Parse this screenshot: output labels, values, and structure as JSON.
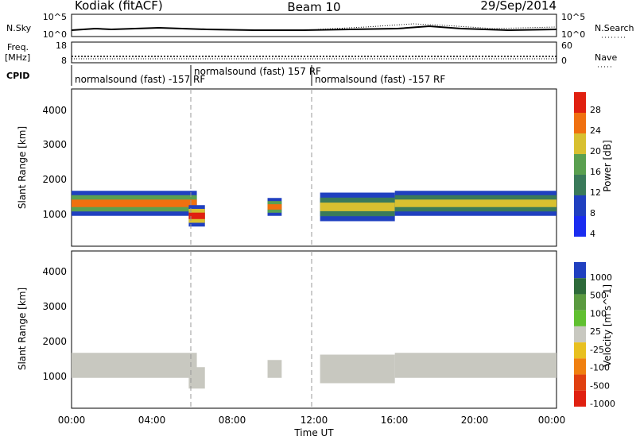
{
  "header": {
    "station": "Kodiak (fitACF)",
    "beam": "Beam 10",
    "date": "29/Sep/2014"
  },
  "noise_panel": {
    "left_label": "N.Sky",
    "right_label": "N.Search",
    "left_ticks": [
      "10^5",
      "10^0"
    ],
    "right_ticks": [
      "10^5",
      "10^0"
    ]
  },
  "freq_panel": {
    "left_label_line1": "Freq.",
    "left_label_line2": "[MHz]",
    "right_label": "Nave",
    "left_ticks": [
      "18",
      "8"
    ],
    "right_ticks": [
      "60",
      "0"
    ]
  },
  "cpid": {
    "label": "CPID",
    "segments": [
      {
        "text": "normalsound (fast) -157 RF",
        "start_hour": 0
      },
      {
        "text": "normalsound (fast) 157 RF",
        "start_hour": 6
      },
      {
        "text": "normalsound (fast) -157 RF",
        "start_hour": 12
      }
    ]
  },
  "chart_data": [
    {
      "type": "heatmap",
      "panel": "power",
      "xlabel": "Time UT",
      "ylabel": "Slant Range [km]",
      "xlim": [
        0,
        24
      ],
      "ylim": [
        200,
        4600
      ],
      "yticks": [
        "1000",
        "2000",
        "3000",
        "4000"
      ],
      "colorbar_label": "Power [dB]",
      "colorbar_ticks": [
        "4",
        "8",
        "12",
        "16",
        "20",
        "24",
        "28"
      ],
      "colors": [
        "#1a2cf0",
        "#2040c0",
        "#3a7a5a",
        "#5aa050",
        "#d8c030",
        "#f07010",
        "#e02010"
      ],
      "bands": [
        {
          "start": 0,
          "end": 6.2,
          "center": 1400,
          "width": 350,
          "level": 5
        },
        {
          "start": 5.8,
          "end": 6.6,
          "center": 1050,
          "width": 300,
          "level": 6
        },
        {
          "start": 9.7,
          "end": 10.4,
          "center": 1300,
          "width": 250,
          "level": 5
        },
        {
          "start": 12.3,
          "end": 16,
          "center": 1300,
          "width": 400,
          "level": 4
        },
        {
          "start": 16,
          "end": 24,
          "center": 1400,
          "width": 350,
          "level": 4
        }
      ]
    },
    {
      "type": "heatmap",
      "panel": "velocity",
      "xlabel": "Time UT",
      "ylabel": "Slant Range [km]",
      "xlim": [
        0,
        24
      ],
      "ylim": [
        200,
        4600
      ],
      "yticks": [
        "1000",
        "2000",
        "3000",
        "4000"
      ],
      "xticks": [
        "00:00",
        "04:00",
        "08:00",
        "12:00",
        "16:00",
        "20:00",
        "00:00"
      ],
      "colorbar_label": "Velocity [m s^-1]",
      "colorbar_ticks": [
        "1000",
        "500",
        "100",
        "25",
        "-25",
        "-100",
        "-500",
        "-1000"
      ],
      "colors": [
        "#2040c0",
        "#2d6a3a",
        "#5a9a40",
        "#60c030",
        "#c8c8c0",
        "#e8c020",
        "#f08010",
        "#e04010",
        "#e02010"
      ]
    }
  ]
}
